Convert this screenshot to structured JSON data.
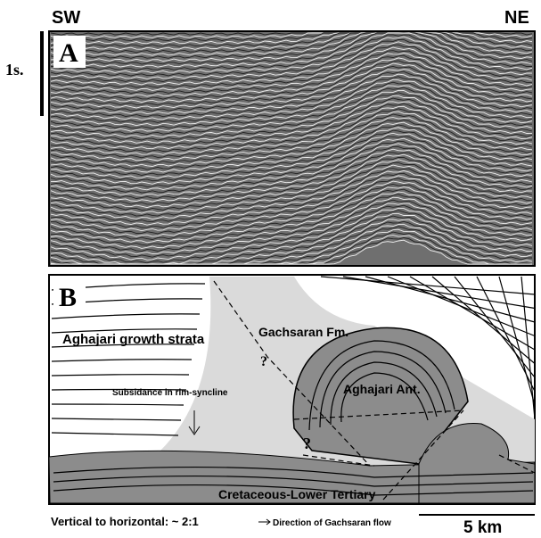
{
  "header": {
    "left": "SW",
    "right": "NE",
    "time_scale": "1s."
  },
  "panel_a": {
    "label": "A"
  },
  "panel_b": {
    "label": "B",
    "labels": [
      "Aghajari growth strata",
      "Gachsaran Fm.",
      "Subsidance in rim-syncline",
      "Aghajari Ant.",
      "?",
      "?",
      "Cretaceous-Lower Tertiary"
    ]
  },
  "footer": {
    "ratio": "Vertical to horizontal: ~ 2:1",
    "flow_legend": "Direction of Gachsaran flow",
    "scale": "5 km"
  }
}
